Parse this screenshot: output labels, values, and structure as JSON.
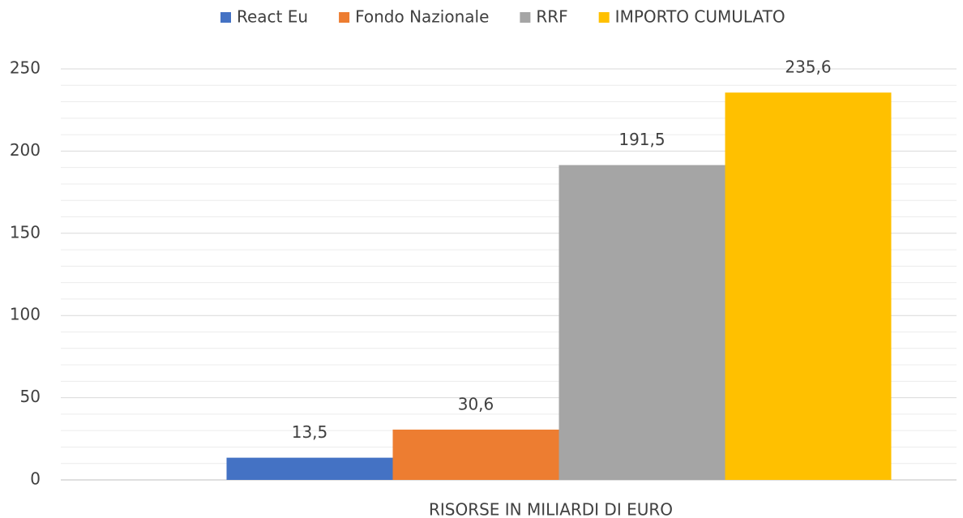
{
  "chart_data": {
    "type": "bar",
    "categories": [
      "RISORSE IN MILIARDI DI EURO"
    ],
    "series": [
      {
        "name": "React Eu",
        "color": "#4472c4",
        "values": [
          13.5
        ],
        "value_labels": [
          "13,5"
        ]
      },
      {
        "name": "Fondo Nazionale",
        "color": "#ed7d31",
        "values": [
          30.6
        ],
        "value_labels": [
          "30,6"
        ]
      },
      {
        "name": "RRF",
        "color": "#a5a5a5",
        "values": [
          191.5
        ],
        "value_labels": [
          "191,5"
        ]
      },
      {
        "name": "IMPORTO CUMULATO",
        "color": "#ffc000",
        "values": [
          235.6
        ],
        "value_labels": [
          "235,6"
        ]
      }
    ],
    "ylim": [
      0,
      250
    ],
    "yticks": [
      0,
      50,
      100,
      150,
      200,
      250
    ],
    "yminorticks": [
      10,
      20,
      30,
      40,
      60,
      70,
      80,
      90,
      110,
      120,
      130,
      140,
      160,
      170,
      180,
      190,
      210,
      220,
      230,
      240
    ],
    "grid": true,
    "legend": "top"
  }
}
